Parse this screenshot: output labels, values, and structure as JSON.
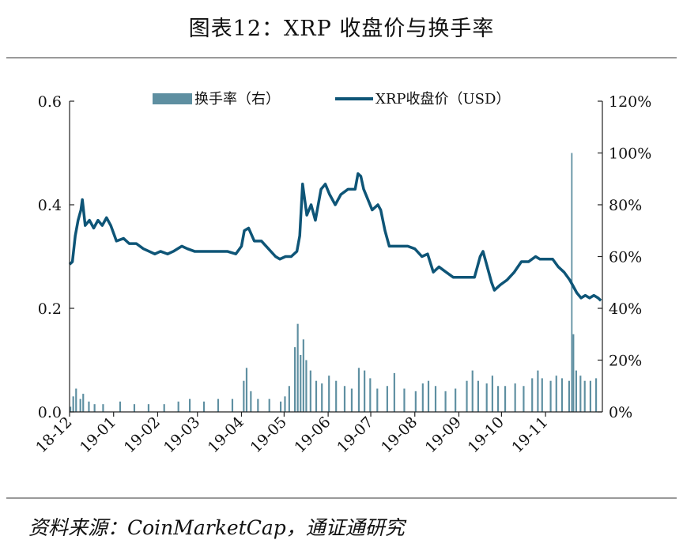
{
  "title": "图表12：XRP 收盘价与换手率",
  "source": "资料来源：CoinMarketCap，通证通研究",
  "colors": {
    "price": "#0e5577",
    "turnover": "#5e8fa1",
    "axis": "#222222"
  },
  "chart_data": {
    "type": "bar+line",
    "legend_position": "top-center",
    "grid": false,
    "x_ticks": [
      "18-12",
      "19-01",
      "19-02",
      "19-03",
      "19-04",
      "19-05",
      "19-06",
      "19-07",
      "19-08",
      "19-09",
      "19-10",
      "19-11"
    ],
    "y_left": {
      "min": 0,
      "max": 0.6,
      "ticks": [
        "0.0",
        "0.2",
        "0.4",
        "0.6"
      ]
    },
    "y_right": {
      "min": 0,
      "max": 120,
      "ticks": [
        "0%",
        "20%",
        "40%",
        "60%",
        "80%",
        "100%",
        "120%"
      ]
    },
    "series": [
      {
        "name": "换手率（右）",
        "type": "bar",
        "axis": "right",
        "points": [
          [
            "2018-12-01",
            2
          ],
          [
            "2018-12-03",
            6
          ],
          [
            "2018-12-05",
            9
          ],
          [
            "2018-12-08",
            5
          ],
          [
            "2018-12-10",
            7
          ],
          [
            "2018-12-14",
            4
          ],
          [
            "2018-12-18",
            3
          ],
          [
            "2018-12-24",
            3
          ],
          [
            "2019-01-05",
            4
          ],
          [
            "2019-01-15",
            3
          ],
          [
            "2019-01-25",
            3
          ],
          [
            "2019-02-05",
            3
          ],
          [
            "2019-02-15",
            4
          ],
          [
            "2019-02-23",
            5
          ],
          [
            "2019-03-05",
            4
          ],
          [
            "2019-03-15",
            5
          ],
          [
            "2019-03-25",
            5
          ],
          [
            "2019-04-02",
            12
          ],
          [
            "2019-04-04",
            17
          ],
          [
            "2019-04-07",
            8
          ],
          [
            "2019-04-12",
            5
          ],
          [
            "2019-04-20",
            5
          ],
          [
            "2019-04-28",
            4
          ],
          [
            "2019-05-01",
            6
          ],
          [
            "2019-05-04",
            10
          ],
          [
            "2019-05-08",
            25
          ],
          [
            "2019-05-10",
            34
          ],
          [
            "2019-05-12",
            22
          ],
          [
            "2019-05-14",
            28
          ],
          [
            "2019-05-16",
            20
          ],
          [
            "2019-05-19",
            16
          ],
          [
            "2019-05-23",
            12
          ],
          [
            "2019-05-27",
            11
          ],
          [
            "2019-06-01",
            14
          ],
          [
            "2019-06-06",
            12
          ],
          [
            "2019-06-12",
            10
          ],
          [
            "2019-06-17",
            9
          ],
          [
            "2019-06-22",
            17
          ],
          [
            "2019-06-26",
            16
          ],
          [
            "2019-06-30",
            13
          ],
          [
            "2019-07-05",
            9
          ],
          [
            "2019-07-12",
            10
          ],
          [
            "2019-07-17",
            15
          ],
          [
            "2019-07-24",
            9
          ],
          [
            "2019-08-01",
            8
          ],
          [
            "2019-08-06",
            11
          ],
          [
            "2019-08-10",
            12
          ],
          [
            "2019-08-15",
            10
          ],
          [
            "2019-08-22",
            8
          ],
          [
            "2019-08-29",
            9
          ],
          [
            "2019-09-06",
            12
          ],
          [
            "2019-09-10",
            16
          ],
          [
            "2019-09-14",
            12
          ],
          [
            "2019-09-20",
            11
          ],
          [
            "2019-09-24",
            14
          ],
          [
            "2019-09-28",
            10
          ],
          [
            "2019-10-03",
            10
          ],
          [
            "2019-10-10",
            11
          ],
          [
            "2019-10-16",
            10
          ],
          [
            "2019-10-22",
            13
          ],
          [
            "2019-10-26",
            16
          ],
          [
            "2019-10-29",
            13
          ],
          [
            "2019-11-04",
            12
          ],
          [
            "2019-11-08",
            14
          ],
          [
            "2019-11-12",
            13
          ],
          [
            "2019-11-17",
            12
          ],
          [
            "2019-11-19",
            100
          ],
          [
            "2019-11-20",
            30
          ],
          [
            "2019-11-22",
            16
          ],
          [
            "2019-11-25",
            14
          ],
          [
            "2019-11-28",
            12
          ],
          [
            "2019-12-02",
            12
          ],
          [
            "2019-12-06",
            13
          ]
        ]
      },
      {
        "name": "XRP收盘价（USD）",
        "type": "line",
        "axis": "left",
        "points": [
          [
            "2018-12-01",
            0.285
          ],
          [
            "2018-12-03",
            0.29
          ],
          [
            "2018-12-05",
            0.34
          ],
          [
            "2018-12-07",
            0.37
          ],
          [
            "2018-12-09",
            0.39
          ],
          [
            "2018-12-10",
            0.41
          ],
          [
            "2018-12-12",
            0.36
          ],
          [
            "2018-12-15",
            0.37
          ],
          [
            "2018-12-18",
            0.355
          ],
          [
            "2018-12-21",
            0.37
          ],
          [
            "2018-12-24",
            0.36
          ],
          [
            "2018-12-27",
            0.375
          ],
          [
            "2018-12-30",
            0.36
          ],
          [
            "2019-01-03",
            0.33
          ],
          [
            "2019-01-08",
            0.335
          ],
          [
            "2019-01-12",
            0.325
          ],
          [
            "2019-01-17",
            0.325
          ],
          [
            "2019-01-22",
            0.315
          ],
          [
            "2019-01-26",
            0.31
          ],
          [
            "2019-01-30",
            0.305
          ],
          [
            "2019-02-03",
            0.31
          ],
          [
            "2019-02-08",
            0.305
          ],
          [
            "2019-02-12",
            0.31
          ],
          [
            "2019-02-18",
            0.32
          ],
          [
            "2019-02-22",
            0.315
          ],
          [
            "2019-02-27",
            0.31
          ],
          [
            "2019-03-05",
            0.31
          ],
          [
            "2019-03-10",
            0.31
          ],
          [
            "2019-03-16",
            0.31
          ],
          [
            "2019-03-22",
            0.31
          ],
          [
            "2019-03-28",
            0.305
          ],
          [
            "2019-04-01",
            0.32
          ],
          [
            "2019-04-03",
            0.35
          ],
          [
            "2019-04-06",
            0.355
          ],
          [
            "2019-04-10",
            0.33
          ],
          [
            "2019-04-15",
            0.33
          ],
          [
            "2019-04-20",
            0.315
          ],
          [
            "2019-04-25",
            0.3
          ],
          [
            "2019-04-28",
            0.295
          ],
          [
            "2019-05-02",
            0.3
          ],
          [
            "2019-05-06",
            0.3
          ],
          [
            "2019-05-10",
            0.31
          ],
          [
            "2019-05-12",
            0.34
          ],
          [
            "2019-05-14",
            0.44
          ],
          [
            "2019-05-15",
            0.42
          ],
          [
            "2019-05-17",
            0.38
          ],
          [
            "2019-05-20",
            0.4
          ],
          [
            "2019-05-23",
            0.37
          ],
          [
            "2019-05-27",
            0.43
          ],
          [
            "2019-05-30",
            0.44
          ],
          [
            "2019-06-02",
            0.42
          ],
          [
            "2019-06-06",
            0.4
          ],
          [
            "2019-06-10",
            0.42
          ],
          [
            "2019-06-15",
            0.43
          ],
          [
            "2019-06-20",
            0.43
          ],
          [
            "2019-06-22",
            0.46
          ],
          [
            "2019-06-24",
            0.455
          ],
          [
            "2019-06-26",
            0.43
          ],
          [
            "2019-06-29",
            0.41
          ],
          [
            "2019-07-02",
            0.39
          ],
          [
            "2019-07-06",
            0.4
          ],
          [
            "2019-07-08",
            0.39
          ],
          [
            "2019-07-11",
            0.35
          ],
          [
            "2019-07-14",
            0.32
          ],
          [
            "2019-07-17",
            0.32
          ],
          [
            "2019-07-22",
            0.32
          ],
          [
            "2019-07-27",
            0.32
          ],
          [
            "2019-08-01",
            0.315
          ],
          [
            "2019-08-06",
            0.3
          ],
          [
            "2019-08-10",
            0.305
          ],
          [
            "2019-08-14",
            0.27
          ],
          [
            "2019-08-18",
            0.28
          ],
          [
            "2019-08-23",
            0.27
          ],
          [
            "2019-08-28",
            0.26
          ],
          [
            "2019-09-03",
            0.26
          ],
          [
            "2019-09-08",
            0.26
          ],
          [
            "2019-09-12",
            0.26
          ],
          [
            "2019-09-16",
            0.3
          ],
          [
            "2019-09-18",
            0.31
          ],
          [
            "2019-09-21",
            0.28
          ],
          [
            "2019-09-24",
            0.25
          ],
          [
            "2019-09-26",
            0.235
          ],
          [
            "2019-09-30",
            0.245
          ],
          [
            "2019-10-05",
            0.255
          ],
          [
            "2019-10-10",
            0.27
          ],
          [
            "2019-10-15",
            0.29
          ],
          [
            "2019-10-20",
            0.29
          ],
          [
            "2019-10-25",
            0.3
          ],
          [
            "2019-10-28",
            0.295
          ],
          [
            "2019-11-01",
            0.295
          ],
          [
            "2019-11-06",
            0.295
          ],
          [
            "2019-11-10",
            0.28
          ],
          [
            "2019-11-14",
            0.27
          ],
          [
            "2019-11-18",
            0.255
          ],
          [
            "2019-11-20",
            0.245
          ],
          [
            "2019-11-23",
            0.23
          ],
          [
            "2019-11-26",
            0.22
          ],
          [
            "2019-11-29",
            0.225
          ],
          [
            "2019-12-02",
            0.22
          ],
          [
            "2019-12-05",
            0.225
          ],
          [
            "2019-12-08",
            0.22
          ],
          [
            "2019-12-10",
            0.215
          ]
        ]
      }
    ]
  }
}
